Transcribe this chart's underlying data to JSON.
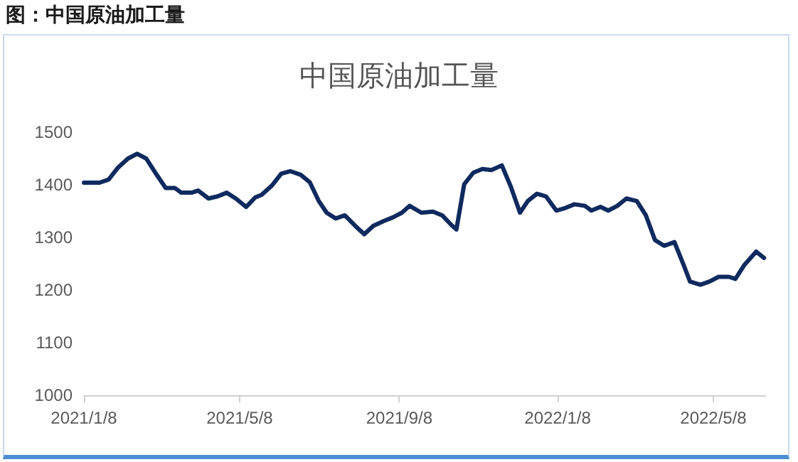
{
  "chart_data": {
    "type": "line",
    "title": "图：中国原油加工量",
    "subtitle": "中国原油加工量",
    "x": [
      "2021-01-08",
      "2021-01-20",
      "2021-01-27",
      "2021-02-03",
      "2021-02-11",
      "2021-02-18",
      "2021-02-25",
      "2021-03-04",
      "2021-03-12",
      "2021-03-19",
      "2021-03-24",
      "2021-04-01",
      "2021-04-06",
      "2021-04-14",
      "2021-04-21",
      "2021-04-28",
      "2021-05-05",
      "2021-05-13",
      "2021-05-20",
      "2021-05-25",
      "2021-06-02",
      "2021-06-09",
      "2021-06-16",
      "2021-06-24",
      "2021-07-01",
      "2021-07-08",
      "2021-07-14",
      "2021-07-21",
      "2021-07-28",
      "2021-08-05",
      "2021-08-12",
      "2021-08-19",
      "2021-08-27",
      "2021-09-03",
      "2021-09-10",
      "2021-09-16",
      "2021-09-25",
      "2021-10-04",
      "2021-10-11",
      "2021-10-18",
      "2021-10-22",
      "2021-10-28",
      "2021-11-04",
      "2021-11-11",
      "2021-11-18",
      "2021-11-26",
      "2021-12-03",
      "2021-12-10",
      "2021-12-16",
      "2021-12-23",
      "2021-12-30",
      "2022-01-07",
      "2022-01-14",
      "2022-01-21",
      "2022-01-29",
      "2022-02-03",
      "2022-02-10",
      "2022-02-16",
      "2022-02-23",
      "2022-03-02",
      "2022-03-10",
      "2022-03-17",
      "2022-03-24",
      "2022-03-31",
      "2022-04-08",
      "2022-04-15",
      "2022-04-20",
      "2022-04-28",
      "2022-05-05",
      "2022-05-12",
      "2022-05-20",
      "2022-05-25",
      "2022-06-01",
      "2022-06-10",
      "2022-06-16"
    ],
    "series": [
      {
        "color": "#0f2a5f",
        "values": [
          1404,
          1404,
          1410,
          1432,
          1450,
          1459,
          1450,
          1423,
          1394,
          1394,
          1385,
          1385,
          1389,
          1374,
          1378,
          1385,
          1374,
          1358,
          1376,
          1381,
          1399,
          1421,
          1426,
          1419,
          1405,
          1369,
          1347,
          1336,
          1342,
          1322,
          1306,
          1322,
          1331,
          1338,
          1347,
          1360,
          1347,
          1349,
          1342,
          1324,
          1315,
          1401,
          1423,
          1430,
          1428,
          1437,
          1396,
          1347,
          1369,
          1383,
          1378,
          1351,
          1356,
          1363,
          1360,
          1351,
          1358,
          1351,
          1360,
          1374,
          1369,
          1342,
          1295,
          1284,
          1291,
          1248,
          1216,
          1210,
          1216,
          1225,
          1225,
          1221,
          1248,
          1273,
          1261
        ]
      }
    ],
    "xlim": [
      "2021-01-08",
      "2022-06-17"
    ],
    "xticks": [
      {
        "value": "2021-01-08",
        "label": "2021/1/8"
      },
      {
        "value": "2021-05-08",
        "label": "2021/5/8"
      },
      {
        "value": "2021-09-08",
        "label": "2021/9/8"
      },
      {
        "value": "2022-01-08",
        "label": "2022/1/8"
      },
      {
        "value": "2022-05-08",
        "label": "2022/5/8"
      }
    ],
    "ylim": [
      1000,
      1500
    ],
    "yticks": [
      1000,
      1100,
      1200,
      1300,
      1400,
      1500
    ],
    "marker": "none",
    "line_style": "solid"
  }
}
